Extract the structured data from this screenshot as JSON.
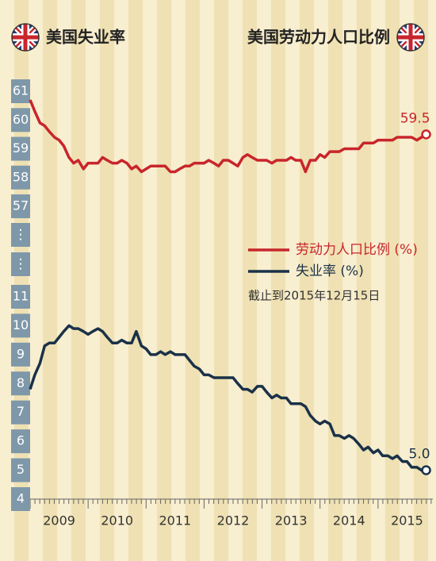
{
  "chart_data": {
    "type": "line",
    "titles": [
      "美国失业率",
      "美国劳动力人口比例"
    ],
    "note": "截止到2015年12月15日",
    "axis_break_label": "⋮",
    "xlim": [
      2009,
      2016
    ],
    "xticks": [
      {
        "value": 2009.5,
        "label": "2009"
      },
      {
        "value": 2010.5,
        "label": "2010"
      },
      {
        "value": 2011.5,
        "label": "2011"
      },
      {
        "value": 2012.5,
        "label": "2012"
      },
      {
        "value": 2013.5,
        "label": "2013"
      },
      {
        "value": 2014.5,
        "label": "2014"
      },
      {
        "value": 2015.5,
        "label": "2015"
      }
    ],
    "x": [
      2009,
      2009.08,
      2009.17,
      2009.25,
      2009.33,
      2009.42,
      2009.5,
      2009.58,
      2009.67,
      2009.75,
      2009.83,
      2009.92,
      2010,
      2010.08,
      2010.17,
      2010.25,
      2010.33,
      2010.42,
      2010.5,
      2010.58,
      2010.67,
      2010.75,
      2010.83,
      2010.92,
      2011,
      2011.08,
      2011.17,
      2011.25,
      2011.33,
      2011.42,
      2011.5,
      2011.58,
      2011.67,
      2011.75,
      2011.83,
      2011.92,
      2012,
      2012.08,
      2012.17,
      2012.25,
      2012.33,
      2012.42,
      2012.5,
      2012.58,
      2012.67,
      2012.75,
      2012.83,
      2012.92,
      2013,
      2013.08,
      2013.17,
      2013.25,
      2013.33,
      2013.42,
      2013.5,
      2013.58,
      2013.67,
      2013.75,
      2013.83,
      2013.92,
      2014,
      2014.08,
      2014.17,
      2014.25,
      2014.33,
      2014.42,
      2014.5,
      2014.58,
      2014.67,
      2014.75,
      2014.83,
      2014.92,
      2015,
      2015.08,
      2015.17,
      2015.25,
      2015.33,
      2015.42,
      2015.5,
      2015.58,
      2015.67,
      2015.75,
      2015.83
    ],
    "series": [
      {
        "name": "劳动力人口比例 (%)",
        "color": "#c8252c",
        "ylim": [
          57,
          61
        ],
        "yticks": [
          61,
          60,
          59,
          58,
          57
        ],
        "last_label": "59.5",
        "values": [
          60.7,
          60.3,
          59.9,
          59.8,
          59.6,
          59.4,
          59.3,
          59.1,
          58.7,
          58.5,
          58.6,
          58.3,
          58.5,
          58.5,
          58.5,
          58.7,
          58.6,
          58.5,
          58.5,
          58.6,
          58.5,
          58.3,
          58.4,
          58.2,
          58.3,
          58.4,
          58.4,
          58.4,
          58.4,
          58.2,
          58.2,
          58.3,
          58.4,
          58.4,
          58.5,
          58.5,
          58.5,
          58.6,
          58.5,
          58.4,
          58.6,
          58.6,
          58.5,
          58.4,
          58.7,
          58.8,
          58.7,
          58.6,
          58.6,
          58.6,
          58.5,
          58.6,
          58.6,
          58.6,
          58.7,
          58.6,
          58.6,
          58.2,
          58.6,
          58.6,
          58.8,
          58.7,
          58.9,
          58.9,
          58.9,
          59.0,
          59.0,
          59.0,
          59.0,
          59.2,
          59.2,
          59.2,
          59.3,
          59.3,
          59.3,
          59.3,
          59.4,
          59.4,
          59.4,
          59.4,
          59.3,
          59.4,
          59.5
        ]
      },
      {
        "name": "失业率 (%)",
        "color": "#1a3148",
        "ylim": [
          4,
          11
        ],
        "yticks": [
          11,
          10,
          9,
          8,
          7,
          6,
          5,
          4
        ],
        "last_label": "5.0",
        "values": [
          7.8,
          8.3,
          8.7,
          9.3,
          9.4,
          9.4,
          9.6,
          9.8,
          10.0,
          9.9,
          9.9,
          9.8,
          9.7,
          9.8,
          9.9,
          9.8,
          9.6,
          9.4,
          9.4,
          9.5,
          9.4,
          9.4,
          9.8,
          9.3,
          9.2,
          9.0,
          9.0,
          9.1,
          9.0,
          9.1,
          9.0,
          9.0,
          9.0,
          8.8,
          8.6,
          8.5,
          8.3,
          8.3,
          8.2,
          8.2,
          8.2,
          8.2,
          8.2,
          8.0,
          7.8,
          7.8,
          7.7,
          7.9,
          7.9,
          7.7,
          7.5,
          7.6,
          7.5,
          7.5,
          7.3,
          7.3,
          7.3,
          7.2,
          6.9,
          6.7,
          6.6,
          6.7,
          6.6,
          6.2,
          6.2,
          6.1,
          6.2,
          6.1,
          5.9,
          5.7,
          5.8,
          5.6,
          5.7,
          5.5,
          5.5,
          5.4,
          5.5,
          5.3,
          5.3,
          5.1,
          5.1,
          5.0,
          5.0
        ]
      }
    ]
  }
}
